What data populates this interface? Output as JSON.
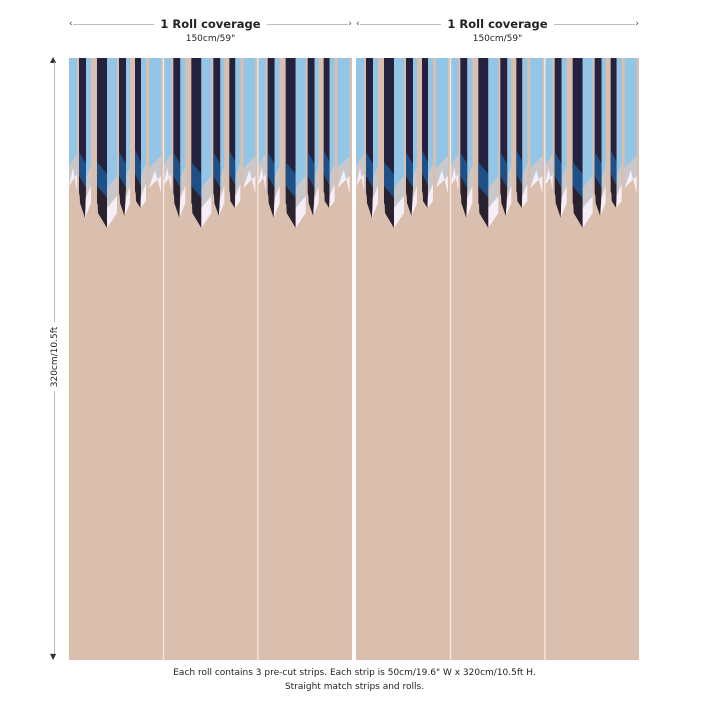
{
  "rolls": [
    {
      "title": "1 Roll coverage",
      "width_label": "150cm/59\""
    },
    {
      "title": "1 Roll coverage",
      "width_label": "150cm/59\""
    }
  ],
  "height_label": "320cm/10.5ft",
  "footer": {
    "line1": "Each roll contains 3 pre-cut strips.  Each strip is 50cm/19.6\" W x 320cm/10.5ft H.",
    "line2": "Straight match strips and rolls."
  },
  "mural": {
    "rolls_count": 2,
    "strips_per_roll": 3,
    "colors": {
      "background": "#dbbfae",
      "light_blue": "#93c6e6",
      "navy": "#24223f",
      "royal_blue": "#1e4f86",
      "grey": "#c8c8cc",
      "white_tip": "#f6eef6",
      "dark_tip": "#2b2230",
      "divider": "#f3e6de"
    }
  }
}
